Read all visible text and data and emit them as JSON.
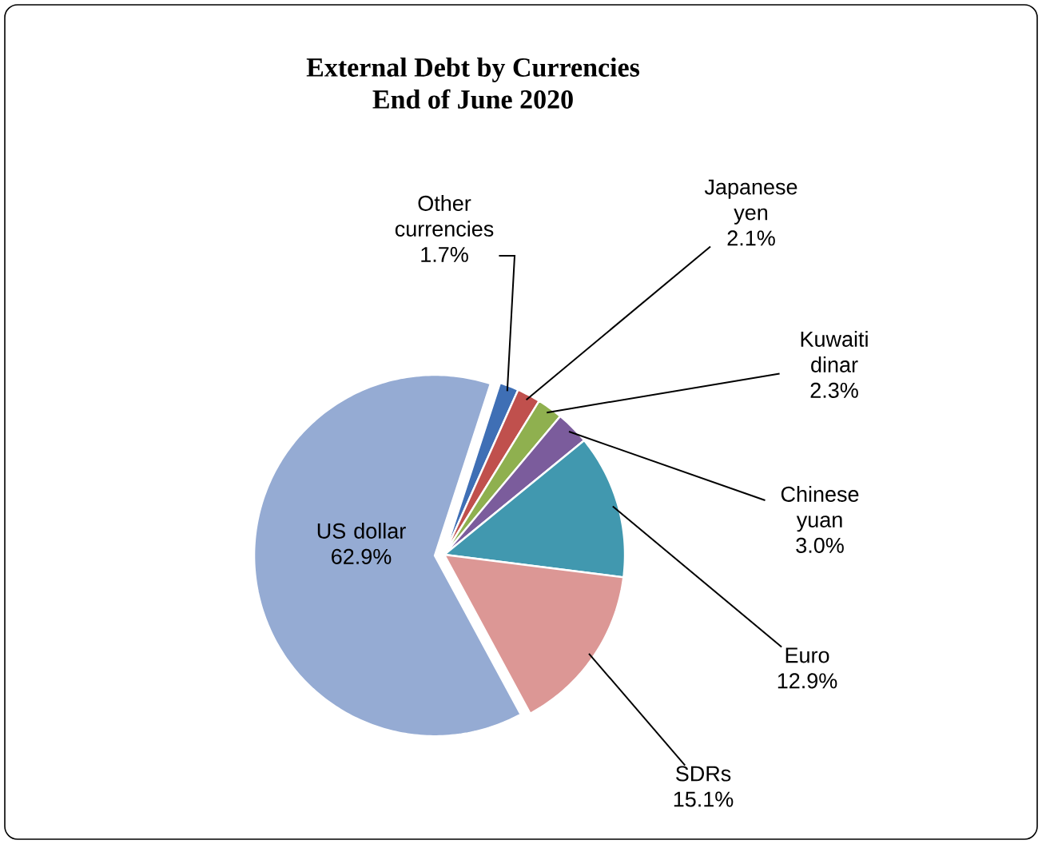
{
  "chart_data": {
    "type": "pie",
    "title": "External Debt by Currencies",
    "subtitle": "End of June 2020",
    "categories": [
      "Other currencies",
      "Japanese yen",
      "Kuwaiti dinar",
      "Chinese yuan",
      "Euro",
      "SDRs",
      "US dollar"
    ],
    "values": [
      1.7,
      2.1,
      2.3,
      3.0,
      12.9,
      15.1,
      62.9
    ],
    "value_labels": [
      "1.7%",
      "2.1%",
      "2.3%",
      "3.0%",
      "12.9%",
      "15.1%",
      "62.9%"
    ],
    "colors": [
      "#3f6fb5",
      "#c0504d",
      "#8fb04f",
      "#7b5c9c",
      "#4198af",
      "#dc9795",
      "#95abd3"
    ]
  }
}
